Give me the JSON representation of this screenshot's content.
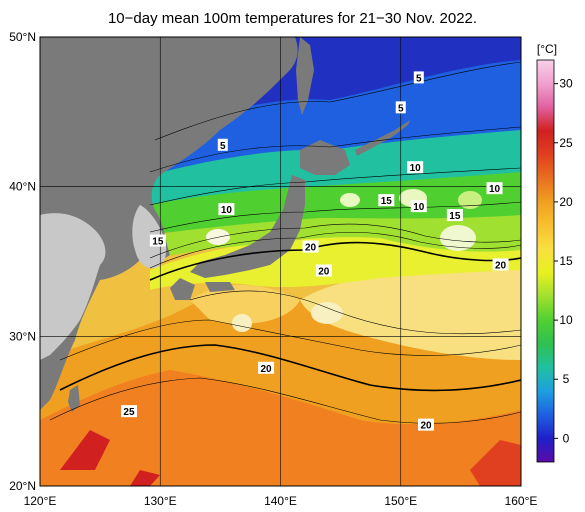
{
  "title": "10−day mean 100m temperatures for 21−30 Nov. 2022.",
  "axes": {
    "lon_labels": [
      "120°E",
      "130°E",
      "140°E",
      "150°E",
      "160°E"
    ],
    "lat_labels": [
      "20°N",
      "30°N",
      "40°N",
      "50°N"
    ],
    "lon_values": [
      120,
      130,
      140,
      150,
      160
    ],
    "lat_values": [
      20,
      30,
      40,
      50
    ]
  },
  "colorbar": {
    "unit": "[°C]",
    "tick_labels": [
      "0",
      "5",
      "10",
      "15",
      "20",
      "25",
      "30"
    ],
    "tick_values": [
      0,
      5,
      10,
      15,
      20,
      25,
      30
    ],
    "range": [
      -2,
      32
    ],
    "colors": [
      "#5a0aa8",
      "#2020c8",
      "#1e60e0",
      "#1ea0e0",
      "#20c0a0",
      "#30c050",
      "#50d030",
      "#a0e030",
      "#e8f020",
      "#f8e040",
      "#f8c030",
      "#f0a020",
      "#e87020",
      "#e04020",
      "#d02020",
      "#e060a0",
      "#f0a0d0",
      "#f8d0e8"
    ]
  },
  "contour_labels": [
    {
      "text": "5",
      "lon": 150,
      "lat": 45.3
    },
    {
      "text": "5",
      "lon": 135.2,
      "lat": 42.8
    },
    {
      "text": "5",
      "lon": 151.5,
      "lat": 47.3
    },
    {
      "text": "10",
      "lon": 151.2,
      "lat": 41.3
    },
    {
      "text": "10",
      "lon": 135.5,
      "lat": 38.5
    },
    {
      "text": "10",
      "lon": 157.8,
      "lat": 39.9
    },
    {
      "text": "10",
      "lon": 151.5,
      "lat": 38.7
    },
    {
      "text": "15",
      "lon": 148.8,
      "lat": 39.1
    },
    {
      "text": "15",
      "lon": 154.5,
      "lat": 38.1
    },
    {
      "text": "15",
      "lon": 129.8,
      "lat": 36.4
    },
    {
      "text": "20",
      "lon": 142.5,
      "lat": 36.0
    },
    {
      "text": "20",
      "lon": 143.6,
      "lat": 34.4
    },
    {
      "text": "20",
      "lon": 158.3,
      "lat": 34.8
    },
    {
      "text": "20",
      "lon": 138.8,
      "lat": 27.9
    },
    {
      "text": "20",
      "lon": 152.1,
      "lat": 24.1
    },
    {
      "text": "25",
      "lon": 127.4,
      "lat": 25.0
    }
  ]
}
